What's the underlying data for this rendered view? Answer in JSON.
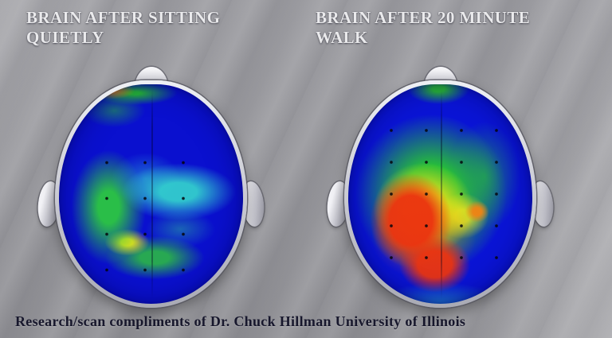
{
  "titles": {
    "left_line1": "BRAIN AFTER SITTING",
    "left_line2": "QUIETLY",
    "right_line1": "BRAIN AFTER 20 MINUTE",
    "right_line2": "WALK"
  },
  "caption": "Research/scan compliments of Dr. Chuck Hillman University of Illinois",
  "scans": {
    "left": {
      "label": "Brain after sitting quietly",
      "dominant_colors": [
        "#0a10cf",
        "#2dcd3c",
        "#34d7cd",
        "#eee618",
        "#ff8c10"
      ]
    },
    "right": {
      "label": "Brain after 20 minute walk",
      "dominant_colors": [
        "#0a14d6",
        "#28c830",
        "#f0e318",
        "#f67812",
        "#eb3410"
      ]
    }
  },
  "palette": {
    "background_gray": "#96969b",
    "title_text": "#eaeaec",
    "caption_text": "#17172c",
    "cold_blue": "#0a10cf",
    "cyan": "#34d7cd",
    "green": "#2dc832",
    "yellow": "#eee618",
    "orange": "#f67812",
    "red": "#eb3410",
    "skull_silver": "#d6d7de"
  }
}
